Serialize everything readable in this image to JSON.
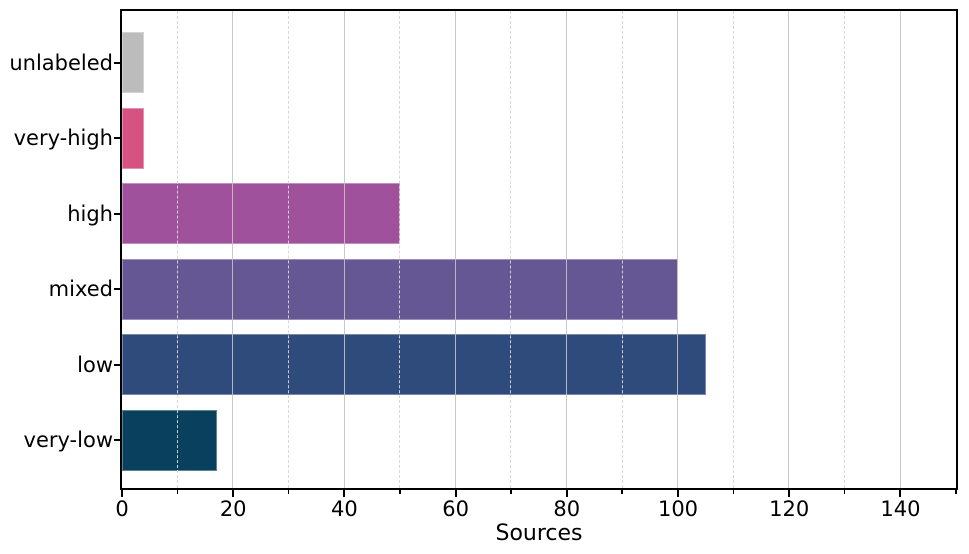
{
  "figure": {
    "background": "#ffffff"
  },
  "chart_data": {
    "type": "bar",
    "orientation": "horizontal",
    "title": "",
    "xlabel": "Sources",
    "ylabel": "",
    "categories": [
      "unlabeled",
      "very-high",
      "high",
      "mixed",
      "low",
      "very-low"
    ],
    "values": [
      4,
      4,
      50,
      100,
      105,
      17
    ],
    "bar_colors": [
      "#bcbcbc",
      "#d45381",
      "#a0519c",
      "#655694",
      "#2f4b7c",
      "#09405e"
    ],
    "xlim": [
      0,
      150
    ],
    "x_major_ticks": [
      0,
      20,
      40,
      60,
      80,
      100,
      120,
      140
    ],
    "x_tick_labels": [
      "0",
      "20",
      "40",
      "60",
      "80",
      "100",
      "120",
      "140"
    ],
    "x_minor_ticks": [
      10,
      30,
      50,
      70,
      90,
      110,
      130,
      150
    ],
    "grid": {
      "axis": "x",
      "major_style": "solid",
      "minor_style": "dashed",
      "over_bars": true
    },
    "legend": null
  },
  "colors": {
    "spine": "#000000",
    "major_grid": "#c3c3c3",
    "minor_grid": "#d6d6d6",
    "tick_label": "#000000"
  }
}
